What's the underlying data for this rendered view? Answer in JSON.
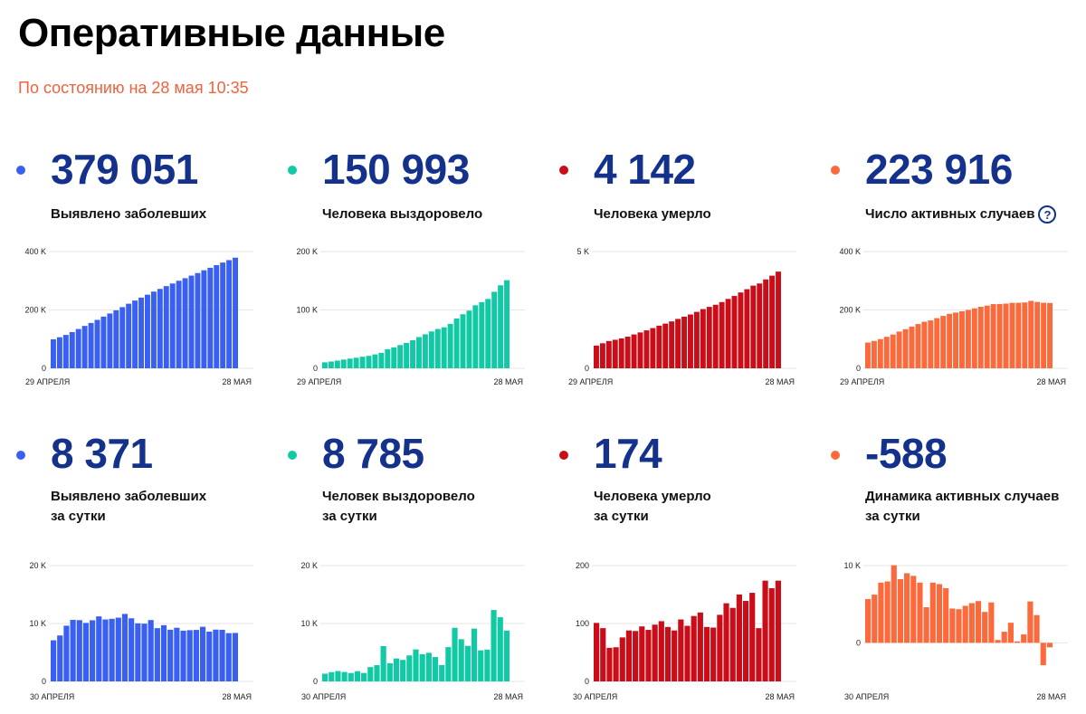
{
  "title": "Оперативные данные",
  "update": "По состоянию на 28 мая 10:35",
  "colors": {
    "blue": "#3a60f2",
    "teal": "#11c9a4",
    "red": "#c90e1a",
    "orange": "#fb6a3d",
    "number": "#14328c"
  },
  "cards": [
    {
      "value": "379 051",
      "label1": "Выявлено заболевших",
      "label2": "",
      "color": "blue"
    },
    {
      "value": "150 993",
      "label1": "Человека выздоровело",
      "label2": "",
      "color": "teal"
    },
    {
      "value": "4 142",
      "label1": "Человека умерло",
      "label2": "",
      "color": "red"
    },
    {
      "value": "223 916",
      "label1": "Число активных случаев",
      "label2": "",
      "color": "orange",
      "help_icon": "question-circle-icon"
    },
    {
      "value": "8 371",
      "label1": "Выявлено заболевших",
      "label2": "за сутки",
      "color": "blue"
    },
    {
      "value": "8 785",
      "label1": "Человек выздоровело",
      "label2": "за сутки",
      "color": "teal"
    },
    {
      "value": "174",
      "label1": "Человека умерло",
      "label2": "за сутки",
      "color": "red"
    },
    {
      "value": "-588",
      "label1": "Динамика активных случаев",
      "label2": "за сутки",
      "color": "orange"
    }
  ],
  "chart_data": [
    {
      "type": "bar",
      "color": "blue",
      "x_start": "29 АПРЕЛЯ",
      "x_end": "28 МАЯ",
      "y_ticks": [
        {
          "value": 0,
          "label": "0"
        },
        {
          "value": 200000,
          "label": "200 K"
        },
        {
          "value": 400000,
          "label": "400 K"
        }
      ],
      "ylim": [
        0,
        400000
      ],
      "values": [
        99399,
        106498,
        114431,
        124054,
        134686,
        145268,
        155370,
        165929,
        177160,
        187859,
        198676,
        209688,
        221344,
        232243,
        242271,
        252245,
        262843,
        272043,
        281752,
        290678,
        299941,
        308705,
        317554,
        326448,
        335882,
        344481,
        353427,
        362342,
        370680,
        379051
      ]
    },
    {
      "type": "bar",
      "color": "teal",
      "x_start": "29 АПРЕЛЯ",
      "x_end": "28 МАЯ",
      "y_ticks": [
        {
          "value": 0,
          "label": "0"
        },
        {
          "value": 100000,
          "label": "100 K"
        },
        {
          "value": 200000,
          "label": "200 K"
        }
      ],
      "ylim": [
        0,
        200000
      ],
      "values": [
        10286,
        11619,
        13220,
        15013,
        16639,
        18097,
        19865,
        21327,
        23803,
        26608,
        32711,
        35838,
        39801,
        43512,
        48003,
        53530,
        58226,
        63166,
        67373,
        70209,
        76130,
        85392,
        92681,
        98825,
        107936,
        113299,
        118798,
        131129,
        142208,
        150993
      ]
    },
    {
      "type": "bar",
      "color": "red",
      "x_start": "29 АПРЕЛЯ",
      "x_end": "28 МАЯ",
      "y_ticks": [
        {
          "value": 0,
          "label": "0"
        },
        {
          "value": 5000,
          "label": "5 K"
        }
      ],
      "ylim": [
        0,
        5000
      ],
      "values": [
        972,
        1073,
        1169,
        1222,
        1280,
        1356,
        1451,
        1537,
        1625,
        1723,
        1827,
        1915,
        2009,
        2116,
        2212,
        2305,
        2418,
        2537,
        2631,
        2722,
        2837,
        2972,
        3099,
        3249,
        3388,
        3541,
        3633,
        3807,
        3968,
        4142
      ]
    },
    {
      "type": "bar",
      "color": "orange",
      "x_start": "29 АПРЕЛЯ",
      "x_end": "28 МАЯ",
      "y_ticks": [
        {
          "value": 0,
          "label": "0"
        },
        {
          "value": 200000,
          "label": "200 K"
        },
        {
          "value": 400000,
          "label": "400 K"
        }
      ],
      "ylim": [
        0,
        400000
      ],
      "values": [
        88141,
        93806,
        100042,
        107819,
        115767,
        125815,
        134054,
        143065,
        151732,
        159528,
        164138,
        171935,
        179534,
        186615,
        191056,
        195410,
        200199,
        205340,
        210748,
        214747,
        219974,
        220341,
        221774,
        224374,
        224558,
        225641,
        230996,
        227406,
        224504,
        223916
      ]
    },
    {
      "type": "bar",
      "color": "blue",
      "x_start": "30 АПРЕЛЯ",
      "x_end": "28 МАЯ",
      "y_ticks": [
        {
          "value": 0,
          "label": "0"
        },
        {
          "value": 10000,
          "label": "10 K"
        },
        {
          "value": 20000,
          "label": "20 K"
        }
      ],
      "ylim": [
        0,
        20000
      ],
      "values": [
        7099,
        7933,
        9623,
        10633,
        10581,
        10102,
        10559,
        11231,
        10699,
        10817,
        11012,
        11656,
        10899,
        10028,
        9974,
        10598,
        9200,
        9709,
        8926,
        9263,
        8764,
        8849,
        8894,
        9434,
        8599,
        8946,
        8915,
        8338,
        8371
      ]
    },
    {
      "type": "bar",
      "color": "teal",
      "x_start": "30 АПРЕЛЯ",
      "x_end": "28 МАЯ",
      "y_ticks": [
        {
          "value": 0,
          "label": "0"
        },
        {
          "value": 10000,
          "label": "10 K"
        },
        {
          "value": 20000,
          "label": "20 K"
        }
      ],
      "ylim": [
        0,
        20000
      ],
      "values": [
        1333,
        1601,
        1793,
        1626,
        1458,
        1768,
        1462,
        2476,
        2805,
        6103,
        3127,
        3963,
        3711,
        4491,
        5527,
        4696,
        4940,
        4207,
        2836,
        5921,
        9262,
        7289,
        6144,
        9111,
        5363,
        5499,
        12331,
        11079,
        8785
      ]
    },
    {
      "type": "bar",
      "color": "red",
      "x_start": "30 АПРЕЛЯ",
      "x_end": "28 МАЯ",
      "y_ticks": [
        {
          "value": 0,
          "label": "0"
        },
        {
          "value": 100,
          "label": "100"
        },
        {
          "value": 200,
          "label": "200"
        }
      ],
      "ylim": [
        0,
        200
      ],
      "values": [
        101,
        92,
        58,
        59,
        76,
        88,
        87,
        95,
        89,
        98,
        104,
        94,
        88,
        107,
        96,
        113,
        119,
        94,
        93,
        115,
        135,
        127,
        150,
        139,
        153,
        92,
        174,
        161,
        174
      ]
    },
    {
      "type": "bar",
      "color": "orange",
      "x_start": "30 АПРЕЛЯ",
      "x_end": "28 МАЯ",
      "y_ticks": [
        {
          "value": 0,
          "label": "0"
        },
        {
          "value": 10000,
          "label": "10 K"
        }
      ],
      "ylim": [
        -5000,
        10000
      ],
      "values": [
        5665,
        6236,
        7797,
        7948,
        10048,
        8239,
        9011,
        8667,
        7796,
        4610,
        7797,
        7599,
        7081,
        4441,
        4354,
        4789,
        5141,
        5408,
        3999,
        5227,
        367,
        1433,
        2600,
        184,
        1083,
        5355,
        3590,
        -2902,
        -588
      ]
    }
  ]
}
